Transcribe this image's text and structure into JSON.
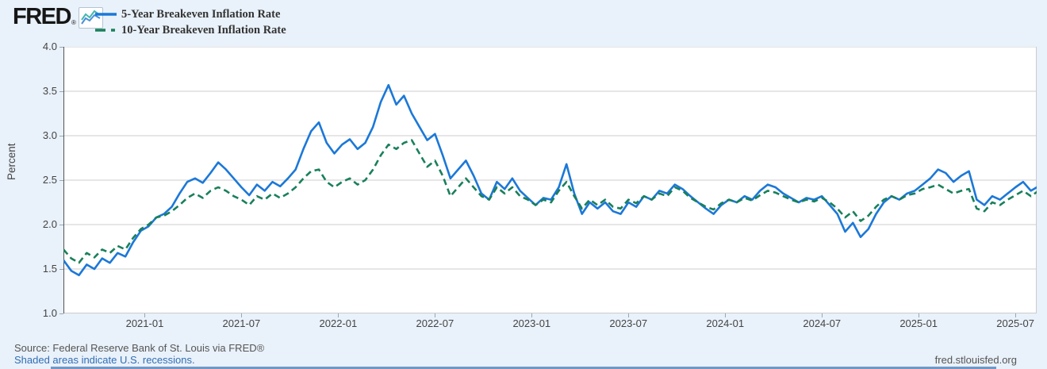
{
  "header": {
    "logo_text": "FRED",
    "logo_reg": "®",
    "logo_icon": "fred-sparkline-icon"
  },
  "legend": {
    "items": [
      {
        "label": "5-Year Breakeven Inflation Rate",
        "color": "#1b78d8",
        "style": "solid"
      },
      {
        "label": "10-Year Breakeven Inflation Rate",
        "color": "#19805a",
        "style": "dashed"
      }
    ]
  },
  "footer": {
    "source": "Source: Federal Reserve Bank of St. Louis via FRED®",
    "recessions_note": "Shaded areas indicate U.S. recessions.",
    "site": "fred.stlouisfed.org"
  },
  "chart_data": {
    "type": "line",
    "title": "",
    "xlabel": "",
    "ylabel": "Percent",
    "grid": "horizontal",
    "legend_position": "top-left",
    "y_domain": [
      1.0,
      4.0
    ],
    "y_tick_values": [
      4.0,
      3.5,
      3.0,
      2.5,
      2.0,
      1.5,
      1.0
    ],
    "y_tick_labels": [
      "4.0",
      "3.5",
      "3.0",
      "2.5",
      "2.0",
      "1.5",
      "1.0"
    ],
    "x_domain": [
      2020.58,
      2025.61
    ],
    "x_tick_values": [
      2021.0,
      2021.5,
      2022.0,
      2022.5,
      2023.0,
      2023.5,
      2024.0,
      2024.5,
      2025.0,
      2025.5
    ],
    "x_tick_labels": [
      "2021-01",
      "2021-07",
      "2022-01",
      "2022-07",
      "2023-01",
      "2023-07",
      "2024-01",
      "2024-07",
      "2025-01",
      "2025-07"
    ],
    "x_start": 2020.58,
    "x_step": 0.04,
    "series": [
      {
        "name": "5-Year Breakeven Inflation Rate",
        "color": "#1b78d8",
        "dash": null,
        "width": 2.6,
        "values": [
          1.6,
          1.48,
          1.43,
          1.55,
          1.5,
          1.62,
          1.57,
          1.68,
          1.64,
          1.8,
          1.93,
          1.98,
          2.08,
          2.12,
          2.2,
          2.35,
          2.48,
          2.52,
          2.47,
          2.58,
          2.7,
          2.62,
          2.52,
          2.42,
          2.33,
          2.45,
          2.38,
          2.48,
          2.43,
          2.52,
          2.62,
          2.85,
          3.05,
          3.15,
          2.92,
          2.8,
          2.9,
          2.96,
          2.85,
          2.92,
          3.1,
          3.38,
          3.57,
          3.35,
          3.45,
          3.25,
          3.1,
          2.95,
          3.02,
          2.78,
          2.52,
          2.62,
          2.72,
          2.55,
          2.35,
          2.28,
          2.48,
          2.4,
          2.52,
          2.38,
          2.3,
          2.22,
          2.3,
          2.28,
          2.42,
          2.68,
          2.35,
          2.12,
          2.25,
          2.18,
          2.25,
          2.15,
          2.12,
          2.25,
          2.2,
          2.32,
          2.28,
          2.38,
          2.35,
          2.45,
          2.4,
          2.32,
          2.25,
          2.18,
          2.12,
          2.22,
          2.28,
          2.25,
          2.32,
          2.28,
          2.38,
          2.45,
          2.42,
          2.35,
          2.3,
          2.25,
          2.3,
          2.28,
          2.32,
          2.22,
          2.12,
          1.92,
          2.02,
          1.86,
          1.95,
          2.12,
          2.25,
          2.32,
          2.28,
          2.35,
          2.38,
          2.45,
          2.52,
          2.62,
          2.58,
          2.48,
          2.55,
          2.6,
          2.28,
          2.22,
          2.32,
          2.28,
          2.35,
          2.42,
          2.48,
          2.38,
          2.43
        ]
      },
      {
        "name": "10-Year Breakeven Inflation Rate",
        "color": "#19805a",
        "dash": [
          8,
          5
        ],
        "width": 2.6,
        "values": [
          1.72,
          1.62,
          1.57,
          1.68,
          1.63,
          1.72,
          1.68,
          1.76,
          1.72,
          1.85,
          1.95,
          2.0,
          2.08,
          2.1,
          2.15,
          2.22,
          2.3,
          2.35,
          2.3,
          2.38,
          2.42,
          2.38,
          2.32,
          2.28,
          2.22,
          2.32,
          2.28,
          2.35,
          2.3,
          2.35,
          2.42,
          2.52,
          2.6,
          2.62,
          2.48,
          2.42,
          2.48,
          2.52,
          2.45,
          2.5,
          2.62,
          2.78,
          2.9,
          2.85,
          2.92,
          2.95,
          2.8,
          2.65,
          2.72,
          2.55,
          2.32,
          2.42,
          2.52,
          2.42,
          2.32,
          2.28,
          2.42,
          2.35,
          2.42,
          2.32,
          2.28,
          2.22,
          2.28,
          2.25,
          2.38,
          2.48,
          2.32,
          2.18,
          2.28,
          2.22,
          2.28,
          2.2,
          2.18,
          2.28,
          2.24,
          2.32,
          2.28,
          2.35,
          2.32,
          2.42,
          2.38,
          2.3,
          2.25,
          2.2,
          2.17,
          2.24,
          2.28,
          2.25,
          2.3,
          2.27,
          2.33,
          2.38,
          2.36,
          2.32,
          2.28,
          2.25,
          2.28,
          2.26,
          2.3,
          2.25,
          2.18,
          2.08,
          2.15,
          2.04,
          2.1,
          2.2,
          2.28,
          2.32,
          2.28,
          2.33,
          2.35,
          2.4,
          2.42,
          2.45,
          2.4,
          2.35,
          2.38,
          2.4,
          2.18,
          2.15,
          2.25,
          2.22,
          2.28,
          2.33,
          2.38,
          2.32,
          2.38
        ]
      }
    ]
  }
}
